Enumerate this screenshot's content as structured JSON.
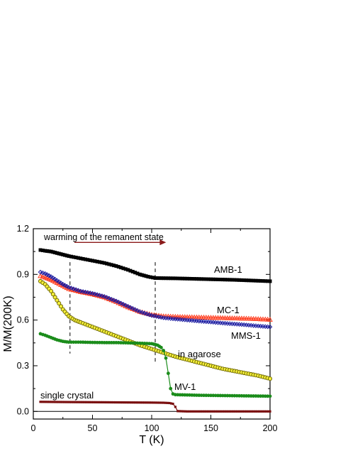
{
  "chart_data": {
    "type": "scatter",
    "xlabel": "T (K)",
    "ylabel": "M/M(200K)",
    "xlim": [
      0,
      200
    ],
    "ylim": [
      -0.05,
      1.2
    ],
    "xticks": [
      0,
      50,
      100,
      150,
      200
    ],
    "yticks": [
      0.0,
      0.3,
      0.6,
      0.9,
      1.2
    ],
    "x_tick_labels": [
      "0",
      "50",
      "100",
      "150",
      "200"
    ],
    "y_tick_labels": [
      "0.0",
      "0.3",
      "0.6",
      "0.9",
      "1.2"
    ],
    "grid": false,
    "legend": "none",
    "annotations": {
      "warming_text": "warming of the remanent state",
      "arrow": {
        "from": [
          30,
          1.11
        ],
        "to": [
          105,
          1.11
        ],
        "color": "#8b1a1a"
      },
      "dashed_lines_x": [
        31,
        103
      ]
    },
    "series": [
      {
        "name": "AMB-1",
        "color": "#000000",
        "marker": "square",
        "points": [
          [
            6,
            1.06
          ],
          [
            10,
            1.055
          ],
          [
            15,
            1.05
          ],
          [
            20,
            1.04
          ],
          [
            25,
            1.03
          ],
          [
            30,
            1.02
          ],
          [
            40,
            1.005
          ],
          [
            50,
            0.99
          ],
          [
            60,
            0.975
          ],
          [
            70,
            0.955
          ],
          [
            80,
            0.93
          ],
          [
            90,
            0.9
          ],
          [
            97,
            0.885
          ],
          [
            103,
            0.876
          ],
          [
            110,
            0.875
          ],
          [
            120,
            0.874
          ],
          [
            130,
            0.872
          ],
          [
            140,
            0.87
          ],
          [
            150,
            0.868
          ],
          [
            160,
            0.866
          ],
          [
            170,
            0.864
          ],
          [
            180,
            0.861
          ],
          [
            190,
            0.858
          ],
          [
            200,
            0.855
          ]
        ]
      },
      {
        "name": "MC-1",
        "color": "#ff3d1f",
        "marker": "triangle",
        "points": [
          [
            6,
            0.89
          ],
          [
            10,
            0.88
          ],
          [
            15,
            0.865
          ],
          [
            20,
            0.845
          ],
          [
            25,
            0.825
          ],
          [
            30,
            0.805
          ],
          [
            40,
            0.785
          ],
          [
            50,
            0.77
          ],
          [
            60,
            0.75
          ],
          [
            70,
            0.72
          ],
          [
            80,
            0.685
          ],
          [
            90,
            0.655
          ],
          [
            100,
            0.635
          ],
          [
            110,
            0.625
          ],
          [
            120,
            0.622
          ],
          [
            130,
            0.62
          ],
          [
            140,
            0.618
          ],
          [
            150,
            0.616
          ],
          [
            160,
            0.614
          ],
          [
            170,
            0.612
          ],
          [
            180,
            0.61
          ],
          [
            190,
            0.607
          ],
          [
            200,
            0.603
          ]
        ]
      },
      {
        "name": "MMS-1",
        "color": "#1a1aa0",
        "marker": "diamond",
        "points": [
          [
            6,
            0.915
          ],
          [
            10,
            0.905
          ],
          [
            15,
            0.885
          ],
          [
            20,
            0.86
          ],
          [
            25,
            0.835
          ],
          [
            30,
            0.815
          ],
          [
            40,
            0.79
          ],
          [
            50,
            0.775
          ],
          [
            60,
            0.755
          ],
          [
            70,
            0.725
          ],
          [
            80,
            0.69
          ],
          [
            90,
            0.655
          ],
          [
            100,
            0.63
          ],
          [
            110,
            0.615
          ],
          [
            120,
            0.607
          ],
          [
            130,
            0.6
          ],
          [
            140,
            0.593
          ],
          [
            150,
            0.587
          ],
          [
            160,
            0.58
          ],
          [
            170,
            0.574
          ],
          [
            180,
            0.568
          ],
          [
            190,
            0.561
          ],
          [
            200,
            0.555
          ]
        ]
      },
      {
        "name": "in agarose",
        "color": "#d4c800",
        "marker": "circle-open",
        "points": [
          [
            6,
            0.855
          ],
          [
            10,
            0.835
          ],
          [
            15,
            0.79
          ],
          [
            20,
            0.73
          ],
          [
            25,
            0.67
          ],
          [
            30,
            0.625
          ],
          [
            35,
            0.6
          ],
          [
            40,
            0.585
          ],
          [
            50,
            0.555
          ],
          [
            60,
            0.525
          ],
          [
            70,
            0.495
          ],
          [
            80,
            0.465
          ],
          [
            90,
            0.435
          ],
          [
            100,
            0.41
          ],
          [
            110,
            0.385
          ],
          [
            120,
            0.36
          ],
          [
            130,
            0.34
          ],
          [
            140,
            0.32
          ],
          [
            150,
            0.3
          ],
          [
            160,
            0.28
          ],
          [
            170,
            0.265
          ],
          [
            180,
            0.25
          ],
          [
            190,
            0.235
          ],
          [
            200,
            0.215
          ]
        ]
      },
      {
        "name": "MV-1",
        "color": "#1b8c1b",
        "marker": "circle-filled",
        "points": [
          [
            6,
            0.51
          ],
          [
            10,
            0.5
          ],
          [
            15,
            0.485
          ],
          [
            20,
            0.47
          ],
          [
            25,
            0.46
          ],
          [
            30,
            0.455
          ],
          [
            40,
            0.455
          ],
          [
            50,
            0.453
          ],
          [
            60,
            0.452
          ],
          [
            70,
            0.452
          ],
          [
            80,
            0.45
          ],
          [
            90,
            0.448
          ],
          [
            100,
            0.445
          ],
          [
            105,
            0.435
          ],
          [
            108,
            0.42
          ],
          [
            110,
            0.4
          ],
          [
            112,
            0.35
          ],
          [
            114,
            0.25
          ],
          [
            116,
            0.15
          ],
          [
            118,
            0.115
          ],
          [
            120,
            0.11
          ],
          [
            130,
            0.108
          ],
          [
            140,
            0.106
          ],
          [
            150,
            0.105
          ],
          [
            160,
            0.104
          ],
          [
            170,
            0.103
          ],
          [
            180,
            0.102
          ],
          [
            190,
            0.101
          ],
          [
            200,
            0.1
          ]
        ]
      },
      {
        "name": "single crystal",
        "color": "#7a0f0f",
        "marker": "square-small",
        "points": [
          [
            6,
            0.063
          ],
          [
            20,
            0.062
          ],
          [
            40,
            0.061
          ],
          [
            60,
            0.06
          ],
          [
            80,
            0.059
          ],
          [
            100,
            0.058
          ],
          [
            110,
            0.057
          ],
          [
            115,
            0.055
          ],
          [
            118,
            0.05
          ],
          [
            120,
            0.03
          ],
          [
            122,
            0.002
          ],
          [
            130,
            0.0
          ],
          [
            140,
            0.0
          ],
          [
            160,
            0.0
          ],
          [
            180,
            0.0
          ],
          [
            200,
            0.0
          ]
        ]
      }
    ],
    "series_labels": [
      "AMB-1",
      "MC-1",
      "MMS-1",
      "in agarose",
      "MV-1",
      "single crystal"
    ]
  }
}
